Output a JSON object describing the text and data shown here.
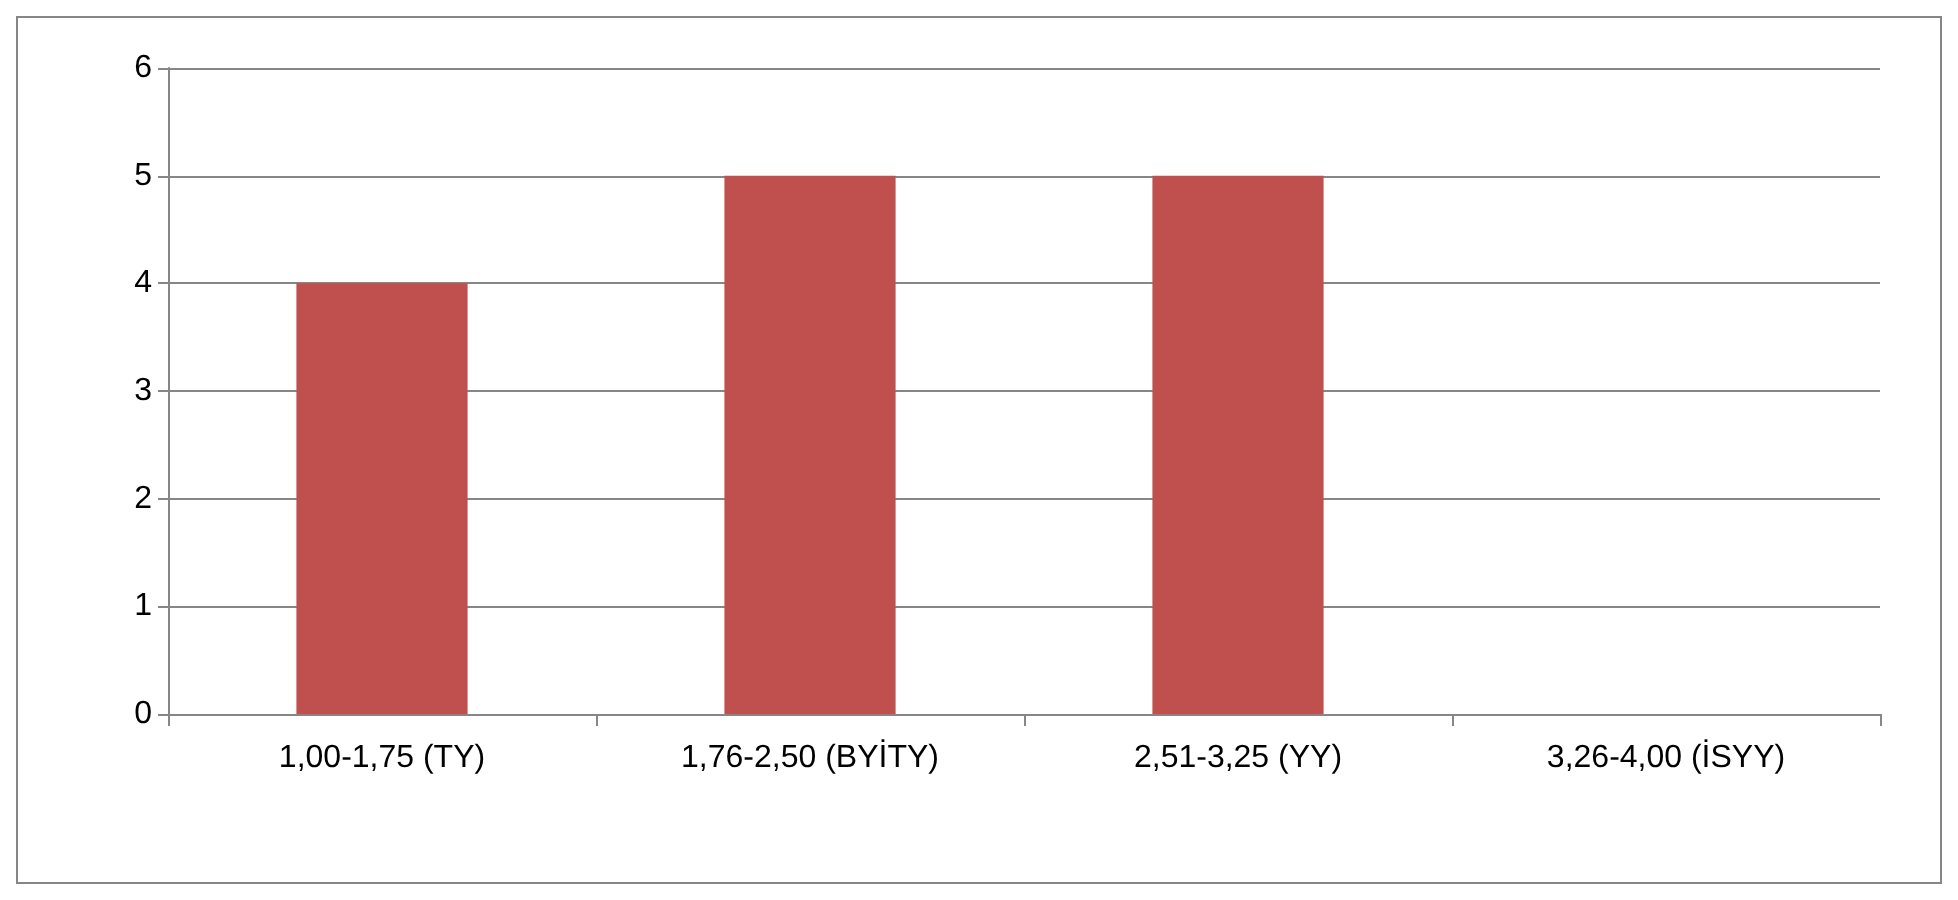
{
  "chart_data": {
    "type": "bar",
    "categories": [
      "1,00-1,75 (TY)",
      "1,76-2,50 (BYİTY)",
      "2,51-3,25 (YY)",
      "3,26-4,00 (İSYY)"
    ],
    "values": [
      4,
      5,
      5,
      0
    ],
    "color": "#c0504d",
    "ylim": [
      0,
      6
    ],
    "yticks": [
      0,
      1,
      2,
      3,
      4,
      5,
      6
    ],
    "grid": "y"
  }
}
